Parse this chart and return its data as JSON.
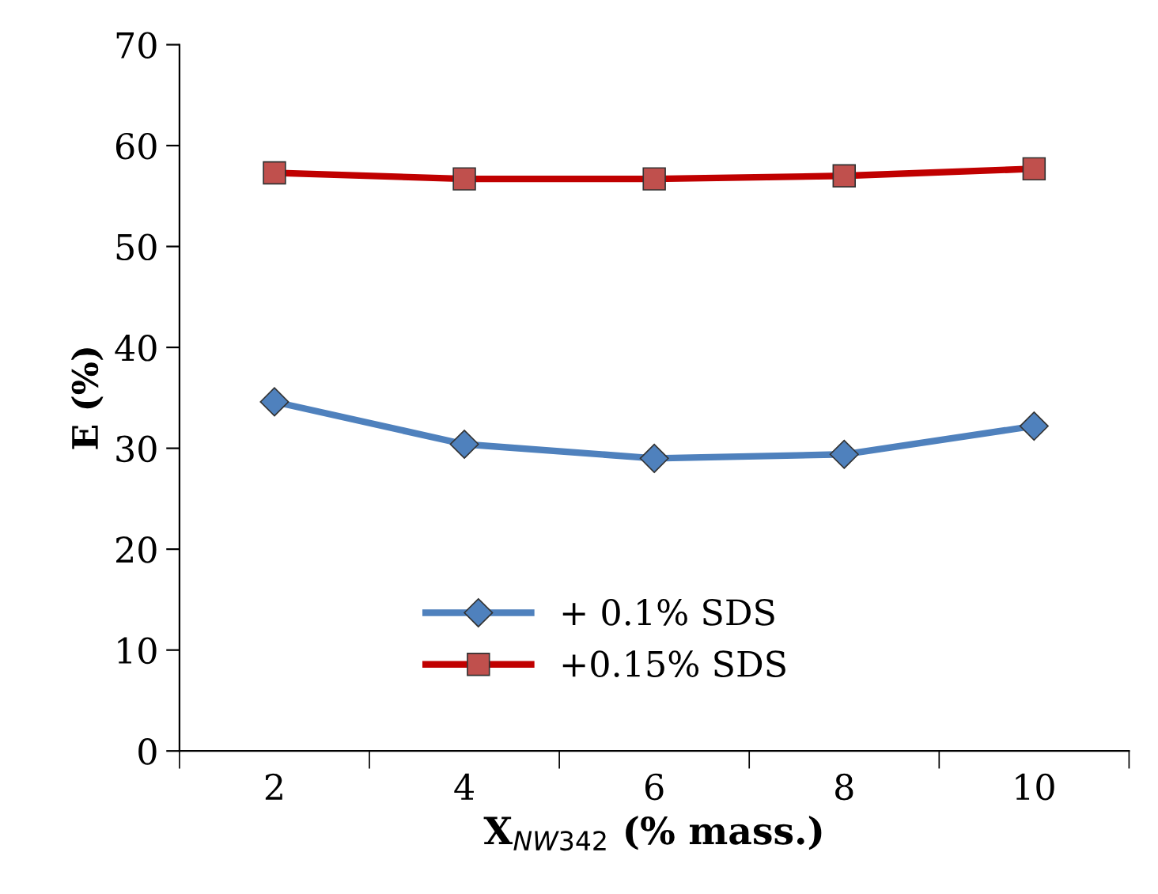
{
  "chart_data": {
    "type": "line",
    "xlabel": "X$_{NW342}$ (% mass.)",
    "ylabel": "E (%)",
    "categories": [
      "2",
      "4",
      "6",
      "8",
      "10"
    ],
    "series": [
      {
        "name": "+ 0.1% SDS",
        "color": "#4f81bd",
        "marker": "diamond",
        "values": [
          34.6,
          30.4,
          29.0,
          29.4,
          32.2
        ]
      },
      {
        "name": "+0.15% SDS",
        "color": "#c00000",
        "marker": "square",
        "values": [
          57.3,
          56.7,
          56.7,
          57.0,
          57.7
        ]
      }
    ],
    "ylim": [
      0,
      70
    ],
    "yticks": [
      0,
      10,
      20,
      30,
      40,
      50,
      60,
      70
    ],
    "grid": false,
    "legend": "lower center"
  }
}
